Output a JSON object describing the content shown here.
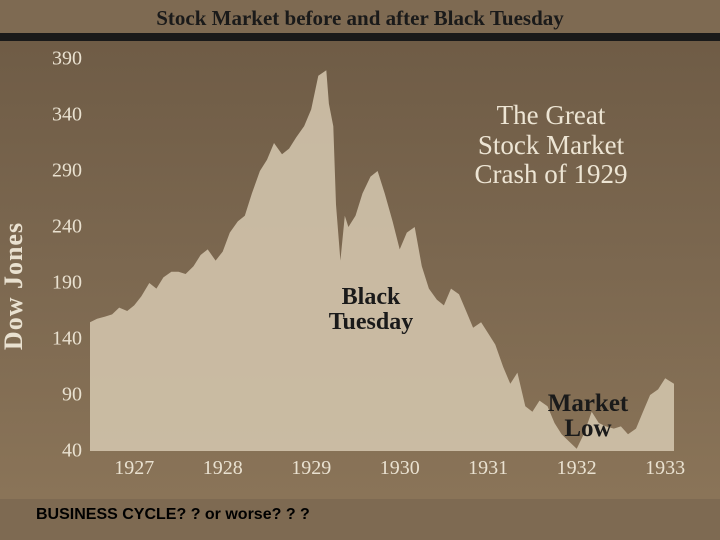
{
  "slide": {
    "title": "Stock Market before and after Black Tuesday",
    "footer": "BUSINESS CYCLE? ? or worse? ? ?"
  },
  "chart": {
    "type": "area",
    "title": "The Great\nStock Market\nCrash of 1929",
    "y_axis": {
      "label": "Dow Jones",
      "ticks": [
        40,
        90,
        140,
        190,
        240,
        290,
        340,
        390
      ],
      "min": 40,
      "max": 390,
      "label_fontsize": 26
    },
    "x_axis": {
      "ticks": [
        1927,
        1928,
        1929,
        1930,
        1931,
        1932,
        1933
      ],
      "min": 1927,
      "max": 1933.6,
      "tick_fontsize": 20
    },
    "annotations": {
      "black_tuesday": "Black\nTuesday",
      "market_low": "Market\nLow"
    },
    "colors": {
      "background_top": "#6f5c46",
      "background_bottom": "#8a7458",
      "area_fill": "#cfc1a9",
      "axis_text": "#e9e1d0",
      "title_text": "#ede5d4",
      "annotation_dark": "#1a1a1a"
    },
    "series": [
      {
        "x": 1927.0,
        "y": 155
      },
      {
        "x": 1927.08,
        "y": 158
      },
      {
        "x": 1927.17,
        "y": 160
      },
      {
        "x": 1927.25,
        "y": 162
      },
      {
        "x": 1927.33,
        "y": 168
      },
      {
        "x": 1927.42,
        "y": 165
      },
      {
        "x": 1927.5,
        "y": 170
      },
      {
        "x": 1927.58,
        "y": 178
      },
      {
        "x": 1927.67,
        "y": 190
      },
      {
        "x": 1927.75,
        "y": 185
      },
      {
        "x": 1927.83,
        "y": 195
      },
      {
        "x": 1927.92,
        "y": 200
      },
      {
        "x": 1928.0,
        "y": 200
      },
      {
        "x": 1928.08,
        "y": 198
      },
      {
        "x": 1928.17,
        "y": 205
      },
      {
        "x": 1928.25,
        "y": 215
      },
      {
        "x": 1928.33,
        "y": 220
      },
      {
        "x": 1928.42,
        "y": 210
      },
      {
        "x": 1928.5,
        "y": 218
      },
      {
        "x": 1928.58,
        "y": 235
      },
      {
        "x": 1928.67,
        "y": 245
      },
      {
        "x": 1928.75,
        "y": 250
      },
      {
        "x": 1928.83,
        "y": 270
      },
      {
        "x": 1928.92,
        "y": 290
      },
      {
        "x": 1929.0,
        "y": 300
      },
      {
        "x": 1929.08,
        "y": 315
      },
      {
        "x": 1929.17,
        "y": 305
      },
      {
        "x": 1929.25,
        "y": 310
      },
      {
        "x": 1929.33,
        "y": 320
      },
      {
        "x": 1929.42,
        "y": 330
      },
      {
        "x": 1929.5,
        "y": 345
      },
      {
        "x": 1929.58,
        "y": 375
      },
      {
        "x": 1929.67,
        "y": 380
      },
      {
        "x": 1929.7,
        "y": 350
      },
      {
        "x": 1929.75,
        "y": 330
      },
      {
        "x": 1929.78,
        "y": 260
      },
      {
        "x": 1929.83,
        "y": 210
      },
      {
        "x": 1929.88,
        "y": 250
      },
      {
        "x": 1929.92,
        "y": 240
      },
      {
        "x": 1930.0,
        "y": 250
      },
      {
        "x": 1930.08,
        "y": 270
      },
      {
        "x": 1930.17,
        "y": 285
      },
      {
        "x": 1930.25,
        "y": 290
      },
      {
        "x": 1930.33,
        "y": 270
      },
      {
        "x": 1930.42,
        "y": 245
      },
      {
        "x": 1930.5,
        "y": 220
      },
      {
        "x": 1930.58,
        "y": 235
      },
      {
        "x": 1930.67,
        "y": 240
      },
      {
        "x": 1930.75,
        "y": 205
      },
      {
        "x": 1930.83,
        "y": 185
      },
      {
        "x": 1930.92,
        "y": 175
      },
      {
        "x": 1931.0,
        "y": 170
      },
      {
        "x": 1931.08,
        "y": 185
      },
      {
        "x": 1931.17,
        "y": 180
      },
      {
        "x": 1931.25,
        "y": 165
      },
      {
        "x": 1931.33,
        "y": 150
      },
      {
        "x": 1931.42,
        "y": 155
      },
      {
        "x": 1931.5,
        "y": 145
      },
      {
        "x": 1931.58,
        "y": 135
      },
      {
        "x": 1931.67,
        "y": 115
      },
      {
        "x": 1931.75,
        "y": 100
      },
      {
        "x": 1931.83,
        "y": 110
      },
      {
        "x": 1931.92,
        "y": 80
      },
      {
        "x": 1932.0,
        "y": 75
      },
      {
        "x": 1932.08,
        "y": 85
      },
      {
        "x": 1932.17,
        "y": 80
      },
      {
        "x": 1932.25,
        "y": 65
      },
      {
        "x": 1932.33,
        "y": 55
      },
      {
        "x": 1932.42,
        "y": 48
      },
      {
        "x": 1932.5,
        "y": 42
      },
      {
        "x": 1932.58,
        "y": 55
      },
      {
        "x": 1932.67,
        "y": 75
      },
      {
        "x": 1932.75,
        "y": 65
      },
      {
        "x": 1932.83,
        "y": 62
      },
      {
        "x": 1932.92,
        "y": 60
      },
      {
        "x": 1933.0,
        "y": 62
      },
      {
        "x": 1933.08,
        "y": 55
      },
      {
        "x": 1933.17,
        "y": 60
      },
      {
        "x": 1933.25,
        "y": 75
      },
      {
        "x": 1933.33,
        "y": 90
      },
      {
        "x": 1933.42,
        "y": 95
      },
      {
        "x": 1933.5,
        "y": 105
      },
      {
        "x": 1933.6,
        "y": 100
      }
    ]
  }
}
